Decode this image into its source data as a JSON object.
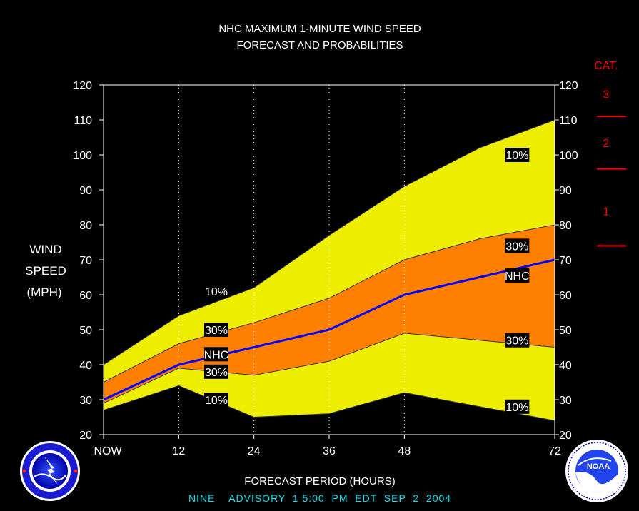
{
  "chart_data": {
    "type": "area",
    "title": "NHC MAXIMUM 1-MINUTE WIND SPEED",
    "subtitle": "FORECAST AND PROBABILITIES",
    "xlabel": "FORECAST PERIOD (HOURS)",
    "ylabel": [
      "WIND",
      "SPEED",
      "(MPH)"
    ],
    "x": [
      0,
      12,
      24,
      36,
      48,
      60,
      72
    ],
    "xticks": [
      {
        "value": 0,
        "label": "NOW"
      },
      {
        "value": 12,
        "label": "12"
      },
      {
        "value": 24,
        "label": "24"
      },
      {
        "value": 36,
        "label": "36"
      },
      {
        "value": 48,
        "label": "48"
      },
      {
        "value": 72,
        "label": "72"
      }
    ],
    "xlim": [
      0,
      72
    ],
    "ylim": [
      20,
      120
    ],
    "yticks": [
      20,
      30,
      40,
      50,
      60,
      70,
      80,
      90,
      100,
      110,
      120
    ],
    "series": [
      {
        "name": "10%",
        "role": "upper-10",
        "values": [
          40,
          54,
          62,
          77,
          91,
          102,
          110
        ]
      },
      {
        "name": "30%",
        "role": "upper-30",
        "values": [
          35,
          46,
          52,
          59,
          70,
          76,
          80
        ]
      },
      {
        "name": "NHC",
        "role": "nhc",
        "values": [
          30,
          40,
          45,
          50,
          60,
          65,
          70
        ]
      },
      {
        "name": "30%",
        "role": "lower-30",
        "values": [
          29,
          39,
          37,
          41,
          49,
          47,
          45
        ]
      },
      {
        "name": "10%",
        "role": "lower-10",
        "values": [
          27,
          34,
          25,
          26,
          32,
          28,
          24
        ]
      }
    ],
    "labels": [
      {
        "text": "10%",
        "x": 18,
        "y": 61
      },
      {
        "text": "30%",
        "x": 18,
        "y": 50
      },
      {
        "text": "NHC",
        "x": 18,
        "y": 43
      },
      {
        "text": "30%",
        "x": 18,
        "y": 38
      },
      {
        "text": "10%",
        "x": 18,
        "y": 30
      },
      {
        "text": "10%",
        "x": 66,
        "y": 100
      },
      {
        "text": "30%",
        "x": 66,
        "y": 74
      },
      {
        "text": "NHC",
        "x": 66,
        "y": 65.5
      },
      {
        "text": "30%",
        "x": 66,
        "y": 47
      },
      {
        "text": "10%",
        "x": 66,
        "y": 28
      }
    ],
    "categories_scale": {
      "header": "CAT.",
      "thresholds": [
        74,
        96,
        111
      ],
      "labels": [
        {
          "text": "1",
          "y": 84
        },
        {
          "text": "2",
          "y": 103.5
        },
        {
          "text": "3",
          "y": 117.5
        }
      ]
    },
    "colors": {
      "outer_band": "#eeee00",
      "inner_band": "#ff7f00",
      "nhc_line": "#0000ff",
      "categories": "#ff0000",
      "background": "#000000"
    },
    "grid": "dotted vertical at x ticks"
  },
  "footer": {
    "advisory": "NINE    ADVISORY  1 5:00  PM  EDT  SEP  2  2004"
  },
  "logos": {
    "left": "nws-logo",
    "right": "noaa-logo",
    "right_text": "NOAA"
  }
}
